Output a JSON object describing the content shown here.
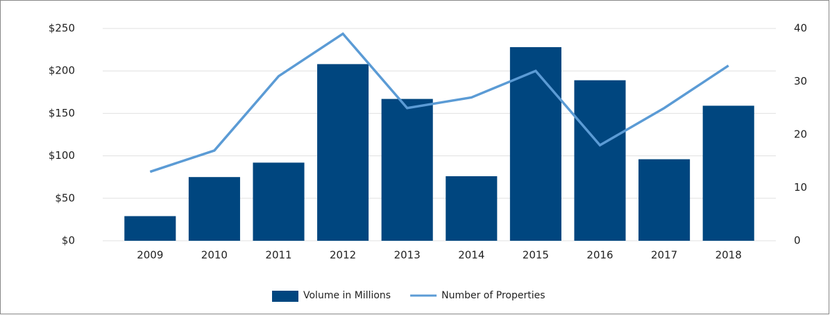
{
  "chart_data": {
    "type": "bar",
    "categories": [
      "2009",
      "2010",
      "2011",
      "2012",
      "2013",
      "2014",
      "2015",
      "2016",
      "2017",
      "2018"
    ],
    "series": [
      {
        "name": "Volume in Millions",
        "type": "bar",
        "color": "#00467f",
        "values": [
          29,
          75,
          92,
          208,
          167,
          76,
          228,
          189,
          96,
          159
        ]
      },
      {
        "name": "Number of Properties",
        "type": "line",
        "axis": "y2",
        "color": "#5b9bd5",
        "values": [
          13,
          17,
          31,
          39,
          25,
          27,
          32,
          18,
          25,
          33
        ]
      }
    ],
    "ylim": [
      0,
      250
    ],
    "yticks": [
      {
        "value": 0,
        "label": "$0"
      },
      {
        "value": 50,
        "label": "$50"
      },
      {
        "value": 100,
        "label": "$100"
      },
      {
        "value": 150,
        "label": "$150"
      },
      {
        "value": 200,
        "label": "$200"
      },
      {
        "value": 250,
        "label": "$250"
      }
    ],
    "y2lim": [
      0,
      40
    ],
    "y2ticks": [
      0,
      10,
      20,
      30,
      40
    ],
    "grid": true,
    "legend": "bottom"
  }
}
